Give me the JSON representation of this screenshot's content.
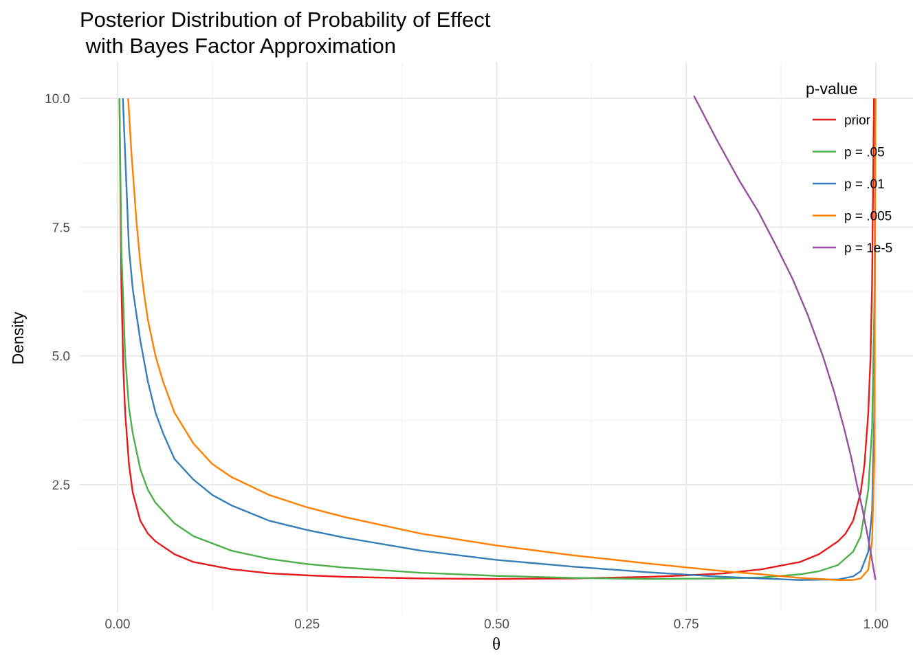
{
  "chart_data": {
    "type": "line",
    "title_line1": "Posterior Distribution of Probability of Effect",
    "title_line2": " with Bayes Factor Approximation",
    "xlabel": "θ",
    "ylabel": "Density",
    "xlim": [
      0,
      1
    ],
    "ylim": [
      0.6,
      10.1
    ],
    "x_ticks": [
      0,
      0.25,
      0.5,
      0.75,
      1.0
    ],
    "x_tick_labels": [
      "0.00",
      "0.25",
      "0.50",
      "0.75",
      "1.00"
    ],
    "y_ticks": [
      2.5,
      5.0,
      7.5,
      10.0
    ],
    "y_tick_labels": [
      "2.5",
      "5.0",
      "7.5",
      "10.0"
    ],
    "grid": true,
    "legend": {
      "title": "p-value",
      "placement": "top-right",
      "labels": [
        "prior",
        "p = .05",
        "p = .01",
        "p = .005",
        "p = 1e-5"
      ]
    },
    "series": [
      {
        "name": "prior",
        "color": "#e41a1c",
        "points": [
          [
            0.0025,
            10.0
          ],
          [
            0.005,
            6.4
          ],
          [
            0.0075,
            4.8
          ],
          [
            0.01,
            3.9
          ],
          [
            0.015,
            2.9
          ],
          [
            0.02,
            2.35
          ],
          [
            0.03,
            1.8
          ],
          [
            0.04,
            1.55
          ],
          [
            0.05,
            1.4
          ],
          [
            0.075,
            1.15
          ],
          [
            0.1,
            1.0
          ],
          [
            0.15,
            0.86
          ],
          [
            0.2,
            0.78
          ],
          [
            0.25,
            0.74
          ],
          [
            0.3,
            0.71
          ],
          [
            0.4,
            0.68
          ],
          [
            0.5,
            0.67
          ],
          [
            0.6,
            0.68
          ],
          [
            0.7,
            0.71
          ],
          [
            0.75,
            0.74
          ],
          [
            0.8,
            0.78
          ],
          [
            0.85,
            0.86
          ],
          [
            0.9,
            1.0
          ],
          [
            0.925,
            1.15
          ],
          [
            0.95,
            1.4
          ],
          [
            0.96,
            1.55
          ],
          [
            0.97,
            1.8
          ],
          [
            0.98,
            2.35
          ],
          [
            0.985,
            2.9
          ],
          [
            0.99,
            3.9
          ],
          [
            0.993,
            5.0
          ],
          [
            0.995,
            6.4
          ],
          [
            0.9975,
            10.0
          ]
        ]
      },
      {
        "name": "p = .05",
        "color": "#4daf4a",
        "points": [
          [
            0.0025,
            10.0
          ],
          [
            0.005,
            7.1
          ],
          [
            0.01,
            5.0
          ],
          [
            0.015,
            4.0
          ],
          [
            0.02,
            3.5
          ],
          [
            0.03,
            2.8
          ],
          [
            0.04,
            2.4
          ],
          [
            0.05,
            2.15
          ],
          [
            0.075,
            1.75
          ],
          [
            0.1,
            1.5
          ],
          [
            0.15,
            1.22
          ],
          [
            0.2,
            1.06
          ],
          [
            0.25,
            0.96
          ],
          [
            0.3,
            0.89
          ],
          [
            0.4,
            0.79
          ],
          [
            0.5,
            0.73
          ],
          [
            0.6,
            0.69
          ],
          [
            0.7,
            0.67
          ],
          [
            0.8,
            0.68
          ],
          [
            0.85,
            0.7
          ],
          [
            0.9,
            0.76
          ],
          [
            0.925,
            0.82
          ],
          [
            0.95,
            0.94
          ],
          [
            0.97,
            1.2
          ],
          [
            0.98,
            1.5
          ],
          [
            0.99,
            2.4
          ],
          [
            0.995,
            3.6
          ],
          [
            0.998,
            6.0
          ],
          [
            0.9995,
            10.0
          ]
        ]
      },
      {
        "name": "p = .01",
        "color": "#377eb8",
        "points": [
          [
            0.007,
            10.0
          ],
          [
            0.015,
            7.1
          ],
          [
            0.02,
            6.3
          ],
          [
            0.025,
            5.8
          ],
          [
            0.03,
            5.3
          ],
          [
            0.035,
            4.9
          ],
          [
            0.04,
            4.5
          ],
          [
            0.05,
            3.9
          ],
          [
            0.06,
            3.5
          ],
          [
            0.075,
            3.0
          ],
          [
            0.1,
            2.6
          ],
          [
            0.125,
            2.3
          ],
          [
            0.15,
            2.1
          ],
          [
            0.2,
            1.8
          ],
          [
            0.25,
            1.62
          ],
          [
            0.3,
            1.47
          ],
          [
            0.4,
            1.22
          ],
          [
            0.5,
            1.04
          ],
          [
            0.6,
            0.91
          ],
          [
            0.7,
            0.8
          ],
          [
            0.8,
            0.71
          ],
          [
            0.85,
            0.68
          ],
          [
            0.9,
            0.65
          ],
          [
            0.95,
            0.66
          ],
          [
            0.97,
            0.72
          ],
          [
            0.98,
            0.82
          ],
          [
            0.99,
            1.2
          ],
          [
            0.995,
            2.0
          ],
          [
            0.998,
            4.0
          ],
          [
            0.9995,
            10.0
          ]
        ]
      },
      {
        "name": "p = .005",
        "color": "#ff7f00",
        "points": [
          [
            0.014,
            10.0
          ],
          [
            0.018,
            9.0
          ],
          [
            0.025,
            7.6
          ],
          [
            0.03,
            6.8
          ],
          [
            0.035,
            6.2
          ],
          [
            0.04,
            5.7
          ],
          [
            0.05,
            5.0
          ],
          [
            0.06,
            4.5
          ],
          [
            0.075,
            3.9
          ],
          [
            0.1,
            3.3
          ],
          [
            0.125,
            2.9
          ],
          [
            0.15,
            2.65
          ],
          [
            0.2,
            2.3
          ],
          [
            0.25,
            2.06
          ],
          [
            0.3,
            1.87
          ],
          [
            0.4,
            1.55
          ],
          [
            0.5,
            1.32
          ],
          [
            0.6,
            1.13
          ],
          [
            0.7,
            0.97
          ],
          [
            0.8,
            0.82
          ],
          [
            0.85,
            0.76
          ],
          [
            0.9,
            0.69
          ],
          [
            0.95,
            0.65
          ],
          [
            0.97,
            0.65
          ],
          [
            0.98,
            0.68
          ],
          [
            0.99,
            0.85
          ],
          [
            0.995,
            1.4
          ],
          [
            0.998,
            3.0
          ],
          [
            0.9995,
            10.0
          ]
        ]
      },
      {
        "name": "p = 1e-5",
        "color": "#984ea3",
        "points": [
          [
            0.76,
            10.05
          ],
          [
            0.79,
            9.2
          ],
          [
            0.82,
            8.4
          ],
          [
            0.845,
            7.8
          ],
          [
            0.868,
            7.15
          ],
          [
            0.89,
            6.5
          ],
          [
            0.91,
            5.8
          ],
          [
            0.93,
            5.0
          ],
          [
            0.945,
            4.3
          ],
          [
            0.958,
            3.6
          ],
          [
            0.968,
            3.0
          ],
          [
            0.975,
            2.5
          ],
          [
            0.982,
            2.05
          ],
          [
            0.988,
            1.6
          ],
          [
            0.993,
            1.2
          ],
          [
            0.996,
            0.95
          ],
          [
            0.998,
            0.78
          ],
          [
            0.9995,
            0.65
          ]
        ]
      }
    ]
  }
}
